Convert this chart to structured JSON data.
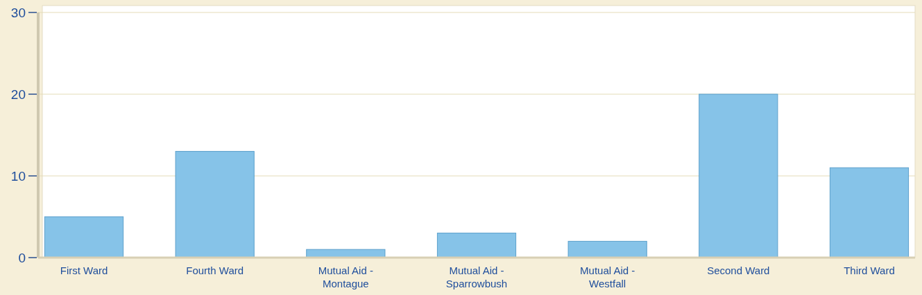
{
  "chart_data": {
    "type": "bar",
    "categories": [
      "First Ward",
      "Fourth Ward",
      "Mutual Aid - Montague",
      "Mutual Aid - Sparrowbush",
      "Mutual Aid - Westfall",
      "Second Ward",
      "Third Ward"
    ],
    "values": [
      5,
      13,
      1,
      3,
      2,
      20,
      11
    ],
    "color": "#86c3e8",
    "ylim": [
      0,
      30
    ],
    "yticks": [
      0,
      10,
      20,
      30
    ],
    "grid": "y"
  }
}
